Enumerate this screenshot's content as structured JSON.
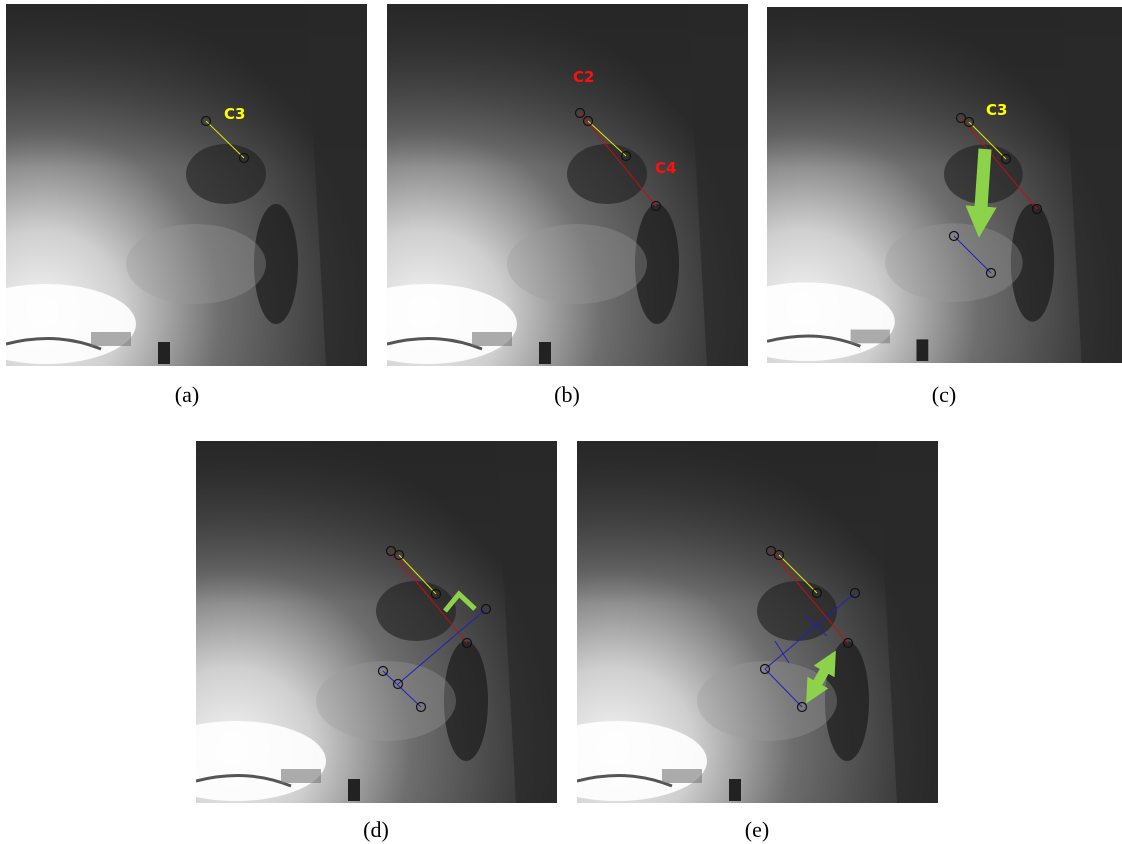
{
  "panels": [
    {
      "caption": "(a)",
      "labels": [
        "C3"
      ]
    },
    {
      "caption": "(b)",
      "labels": [
        "C2",
        "C4"
      ]
    },
    {
      "caption": "(c)",
      "labels": [
        "C3"
      ]
    },
    {
      "caption": "(d)"
    },
    {
      "caption": "(e)"
    }
  ]
}
